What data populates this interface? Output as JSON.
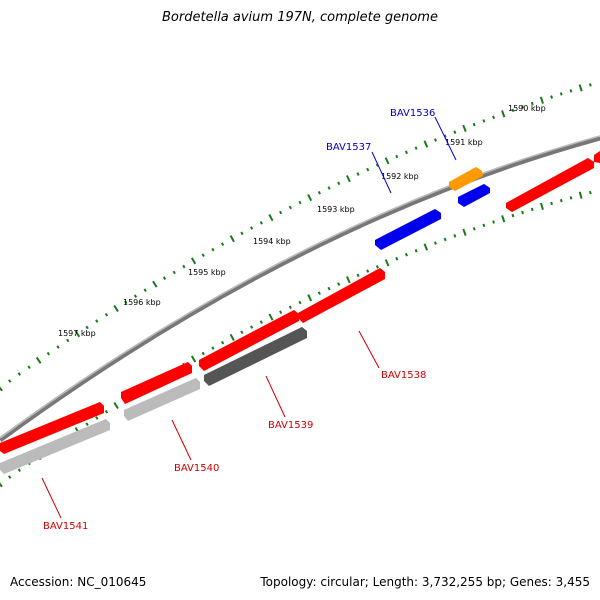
{
  "title": "Bordetella avium 197N, complete genome",
  "footer": {
    "accession": "Accession: NC_010645",
    "summary": "Topology: circular; Length: 3,732,255 bp; Genes: 3,455"
  },
  "colors": {
    "backbone": "#888888",
    "ticks": "#1a7a1a",
    "forward_gene": "#ff0000",
    "reverse_gene": "#bbbbbb",
    "reverse_gene_dark": "#666666",
    "highlight_gene": "#0000ee",
    "orange_gene": "#ff9900",
    "label_forward": "#cc0000",
    "label_highlight": "#0000cc"
  },
  "scale_labels": [
    "1590 kbp",
    "1591 kbp",
    "1592 kbp",
    "1593 kbp",
    "1594 kbp",
    "1595 kbp",
    "1596 kbp",
    "1597 kbp"
  ],
  "gene_labels": [
    {
      "id": "BAV1536",
      "color": "#0000cc"
    },
    {
      "id": "BAV1537",
      "color": "#0000cc"
    },
    {
      "id": "BAV1538",
      "color": "#cc0000"
    },
    {
      "id": "BAV1539",
      "color": "#cc0000"
    },
    {
      "id": "BAV1540",
      "color": "#cc0000"
    },
    {
      "id": "BAV1541",
      "color": "#cc0000"
    }
  ]
}
